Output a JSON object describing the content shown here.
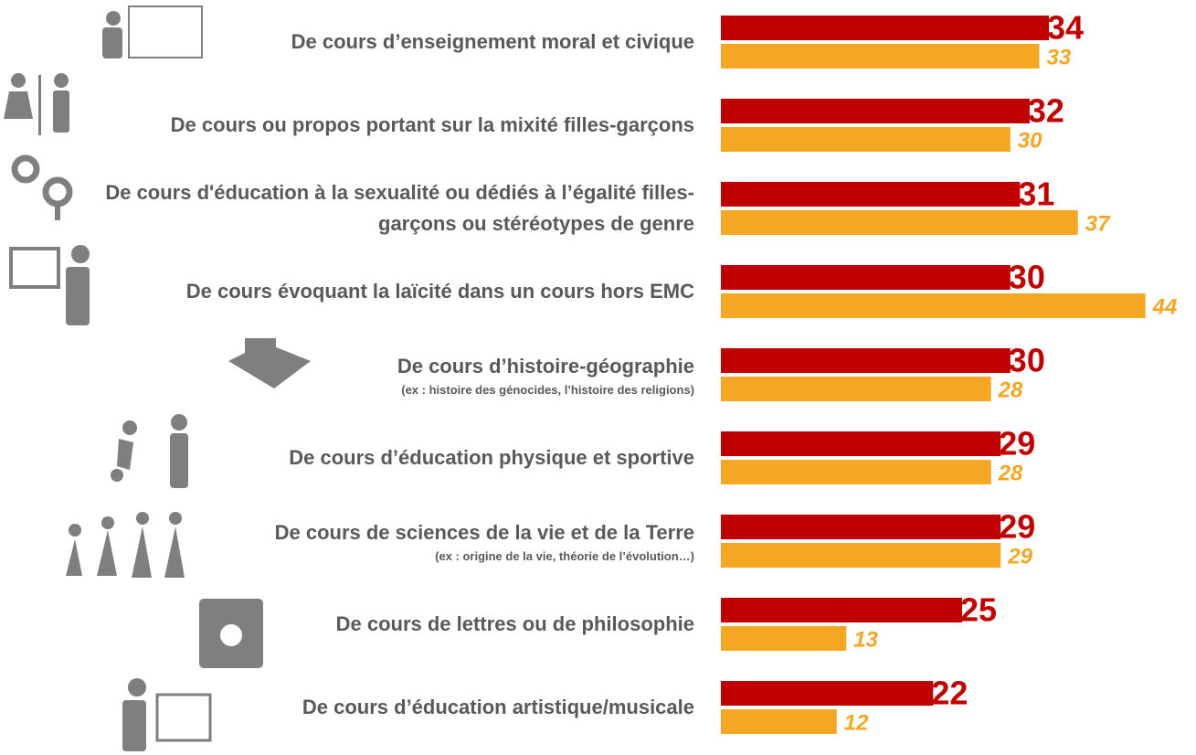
{
  "chart_data": {
    "type": "bar",
    "categories": [
      "De cours d’enseignement moral et civique",
      "De cours ou propos portant sur la mixité filles-garçons",
      "De cours d'éducation à la sexualité ou dédiés à l’égalité filles-garçons ou stéréotypes de genre",
      "De cours évoquant la laïcité dans un cours hors EMC",
      "De cours d’histoire-géographie",
      "De cours d’éducation physique et sportive",
      "De cours de sciences de la vie et de la Terre",
      "De cours de lettres ou de philosophie",
      "De cours d’éducation artistique/musicale"
    ],
    "category_notes": [
      null,
      null,
      null,
      null,
      "(ex : histoire des génocides, l’histoire des religions)",
      null,
      "(ex : origine de la vie, théorie de l’évolution…)",
      null,
      null
    ],
    "series": [
      {
        "color": "#c00000",
        "values": [
          34,
          32,
          31,
          30,
          30,
          29,
          29,
          25,
          22
        ]
      },
      {
        "color": "#f5a623",
        "values": [
          33,
          30,
          37,
          44,
          28,
          28,
          29,
          13,
          12
        ]
      }
    ]
  }
}
